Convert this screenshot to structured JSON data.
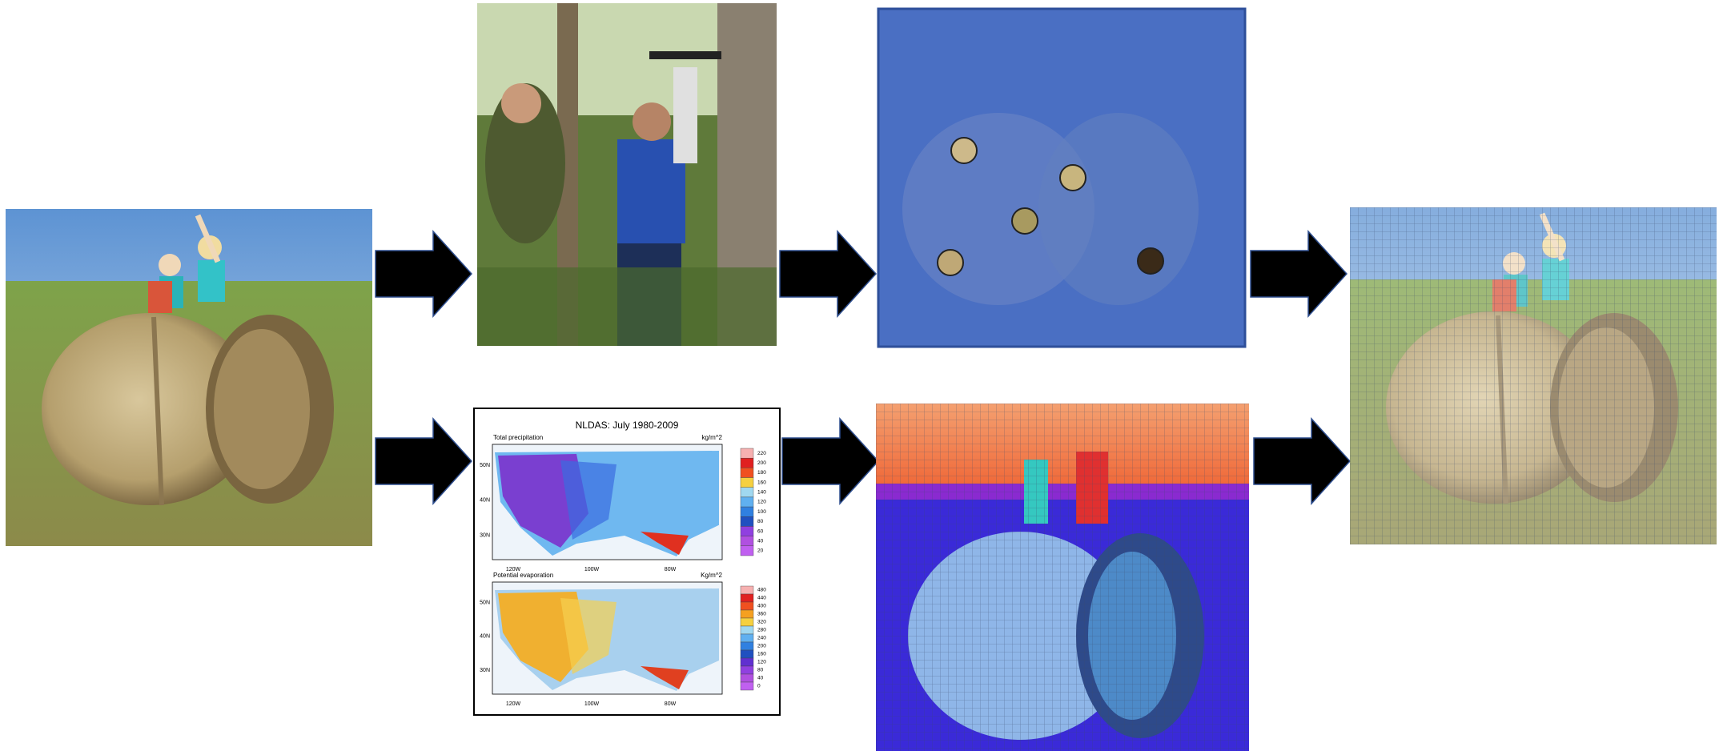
{
  "map": {
    "title": "NLDAS: July 1980-2009",
    "panels": [
      {
        "label": "Total precipitation",
        "unit": "kg/m^2",
        "lat_labels": [
          "50N",
          "40N",
          "30N"
        ],
        "lon_labels": [
          "120W",
          "100W",
          "80W"
        ],
        "legend": [
          "220",
          "200",
          "180",
          "160",
          "140",
          "120",
          "100",
          "80",
          "60",
          "40",
          "20"
        ]
      },
      {
        "label": "Potential evaporation",
        "unit": "Kg/m^2",
        "lat_labels": [
          "50N",
          "40N",
          "30N"
        ],
        "lon_labels": [
          "120W",
          "100W",
          "80W"
        ],
        "legend": [
          "480",
          "440",
          "400",
          "360",
          "320",
          "280",
          "240",
          "200",
          "160",
          "120",
          "80",
          "40",
          "0"
        ]
      }
    ]
  }
}
